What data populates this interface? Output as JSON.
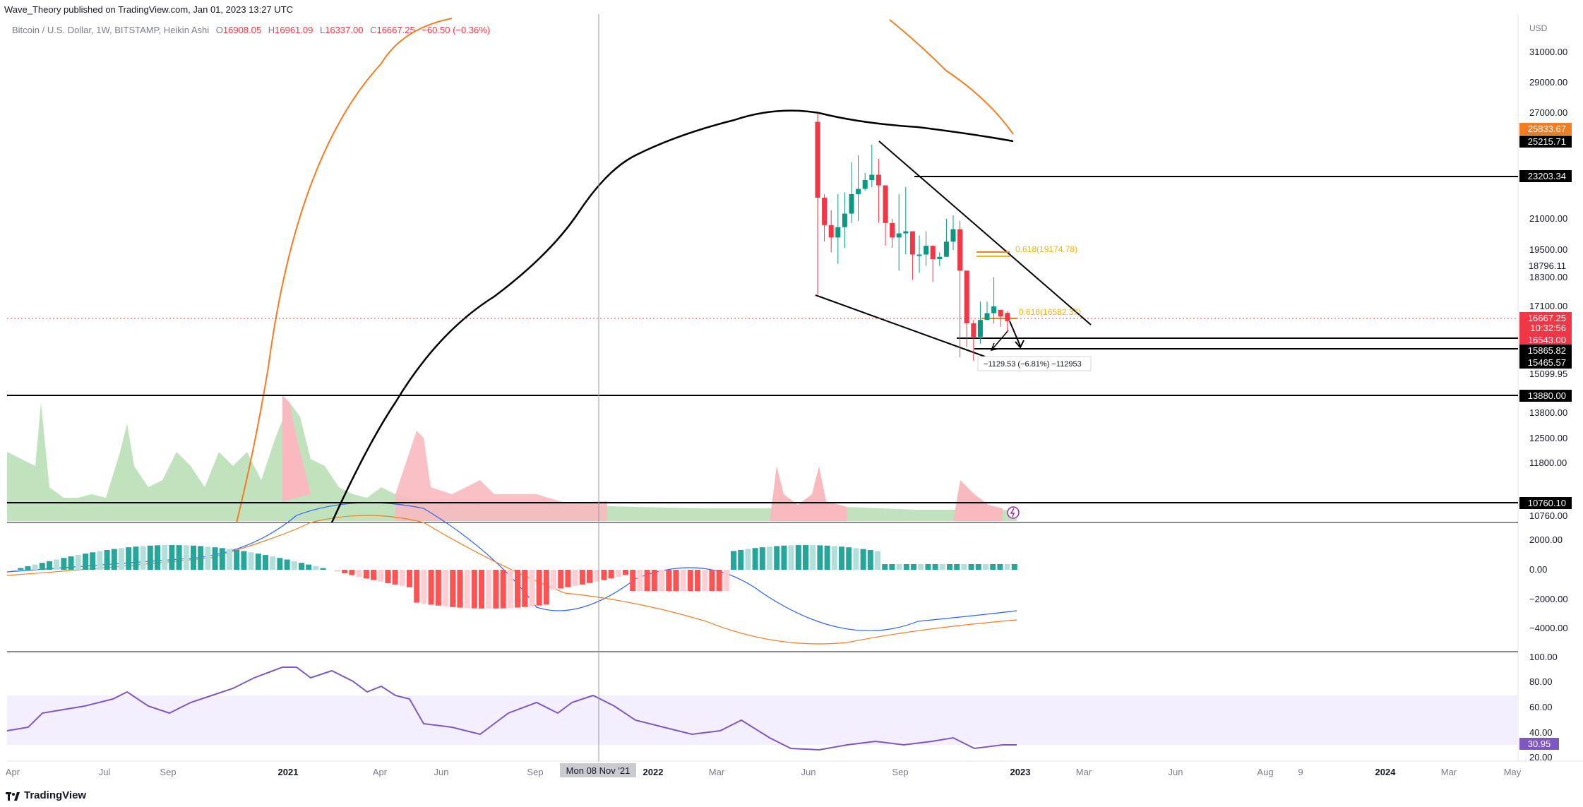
{
  "header": {
    "publisher_line": "Wave_Theory published on TradingView.com, Jan 01, 2023 13:27 UTC"
  },
  "symbol": {
    "name": "Bitcoin / U.S. Dollar, 1W, BITSTAMP, Heikin Ashi",
    "open_label": "O",
    "open": "16908.05",
    "high_label": "H",
    "high": "16961.09",
    "low_label": "L",
    "low": "16337.00",
    "close_label": "C",
    "close": "16667.25",
    "change": "−60.50 (−0.36%)"
  },
  "footer": {
    "brand": "TradingView"
  },
  "chart_data": {
    "type": "candlestick",
    "price_axis": {
      "unit": "USD",
      "ticks": [
        "31000.00",
        "29000.00",
        "27000.00",
        "21000.00",
        "19500.00",
        "18300.00",
        "17100.00",
        "15099.95",
        "13800.00",
        "12500.00",
        "11800.00",
        "10760.00"
      ],
      "badges": [
        {
          "value": "25833.67",
          "color": "#f57c1f"
        },
        {
          "value": "25215.71",
          "color": "#000000"
        },
        {
          "value": "23203.34",
          "color": "#000000"
        },
        {
          "value": "18796.11",
          "color": "#ffffff"
        },
        {
          "value": "16667.25",
          "color": "#f23645"
        },
        {
          "value": "10:32:56",
          "color": "#f23645"
        },
        {
          "value": "16543.00",
          "color": "#f23645"
        },
        {
          "value": "15865.82",
          "color": "#000000"
        },
        {
          "value": "15465.57",
          "color": "#000000"
        },
        {
          "value": "13880.00",
          "color": "#000000"
        },
        {
          "value": "10760.10",
          "color": "#000000"
        }
      ]
    },
    "time_axis": [
      "Apr",
      "Jul",
      "Sep",
      "2021",
      "Apr",
      "Jun",
      "Sep",
      "2022",
      "Mar",
      "Jun",
      "Sep",
      "2023",
      "Mar",
      "Jun",
      "Aug",
      "9",
      "2024",
      "Mar",
      "May"
    ],
    "crosshair_label": "Mon 08 Nov '21",
    "annotations": {
      "fib_upper": "0.618(19174.78)",
      "fib_lower": "0.618(16582.37)",
      "measure": "−1129.53 (−6.81%) −112953"
    },
    "horizontal_levels": [
      23203.34,
      15865.82,
      15465.57,
      13880.0,
      10760.1
    ],
    "recent_candles": [
      {
        "week": "2022-06-13",
        "open": 26500,
        "high": 27000,
        "low": 17600,
        "close": 22200
      },
      {
        "week": "2022-06-20",
        "open": 22200,
        "high": 22400,
        "low": 19900,
        "close": 20700
      },
      {
        "week": "2022-06-27",
        "open": 20700,
        "high": 21500,
        "low": 19400,
        "close": 20100
      },
      {
        "week": "2022-07-04",
        "open": 20100,
        "high": 22400,
        "low": 18900,
        "close": 20600
      },
      {
        "week": "2022-07-11",
        "open": 20600,
        "high": 22500,
        "low": 19600,
        "close": 21300
      },
      {
        "week": "2022-07-18",
        "open": 21300,
        "high": 24200,
        "low": 20800,
        "close": 22400
      },
      {
        "week": "2022-07-25",
        "open": 22400,
        "high": 24600,
        "low": 20900,
        "close": 22700
      },
      {
        "week": "2022-08-01",
        "open": 22700,
        "high": 23600,
        "low": 22600,
        "close": 23200
      },
      {
        "week": "2022-08-08",
        "open": 23200,
        "high": 25200,
        "low": 22800,
        "close": 23500
      },
      {
        "week": "2022-08-15",
        "open": 23500,
        "high": 24400,
        "low": 20800,
        "close": 22900
      },
      {
        "week": "2022-08-22",
        "open": 22900,
        "high": 22900,
        "low": 19700,
        "close": 20800
      },
      {
        "week": "2022-08-29",
        "open": 20800,
        "high": 21000,
        "low": 19600,
        "close": 20100
      },
      {
        "week": "2022-09-05",
        "open": 20100,
        "high": 22400,
        "low": 18600,
        "close": 20300
      },
      {
        "week": "2022-09-12",
        "open": 20300,
        "high": 22800,
        "low": 19300,
        "close": 20400
      },
      {
        "week": "2022-09-19",
        "open": 20400,
        "high": 20400,
        "low": 18200,
        "close": 19300
      },
      {
        "week": "2022-09-26",
        "open": 19300,
        "high": 20200,
        "low": 18500,
        "close": 19300
      },
      {
        "week": "2022-10-03",
        "open": 19300,
        "high": 20400,
        "low": 18800,
        "close": 19700
      },
      {
        "week": "2022-10-10",
        "open": 19700,
        "high": 19700,
        "low": 18100,
        "close": 19100
      },
      {
        "week": "2022-10-17",
        "open": 19100,
        "high": 19400,
        "low": 18800,
        "close": 19200
      },
      {
        "week": "2022-10-24",
        "open": 19200,
        "high": 21000,
        "low": 19200,
        "close": 19900
      },
      {
        "week": "2022-10-31",
        "open": 19900,
        "high": 21200,
        "low": 19500,
        "close": 20500
      },
      {
        "week": "2022-11-07",
        "open": 20500,
        "high": 20900,
        "low": 15600,
        "close": 18600
      },
      {
        "week": "2022-11-14",
        "open": 18600,
        "high": 18600,
        "low": 15900,
        "close": 16600
      },
      {
        "week": "2022-11-21",
        "open": 16600,
        "high": 16700,
        "low": 15500,
        "close": 16200
      },
      {
        "week": "2022-11-28",
        "open": 16200,
        "high": 17300,
        "low": 16000,
        "close": 16700
      },
      {
        "week": "2022-12-05",
        "open": 16700,
        "high": 17300,
        "low": 16700,
        "close": 16900
      },
      {
        "week": "2022-12-12",
        "open": 16900,
        "high": 18300,
        "low": 16600,
        "close": 17100
      },
      {
        "week": "2022-12-19",
        "open": 17000,
        "high": 17000,
        "low": 16500,
        "close": 16800
      },
      {
        "week": "2022-12-26",
        "open": 16908.05,
        "high": 16961.09,
        "low": 16337.0,
        "close": 16667.25
      }
    ],
    "macd_axis": [
      "2000.00",
      "0.00",
      "−2000.00",
      "−4000.00"
    ],
    "rsi_axis": [
      "100.00",
      "80.00",
      "60.00",
      "40.00",
      "20.00"
    ],
    "rsi_value": "30.95"
  }
}
